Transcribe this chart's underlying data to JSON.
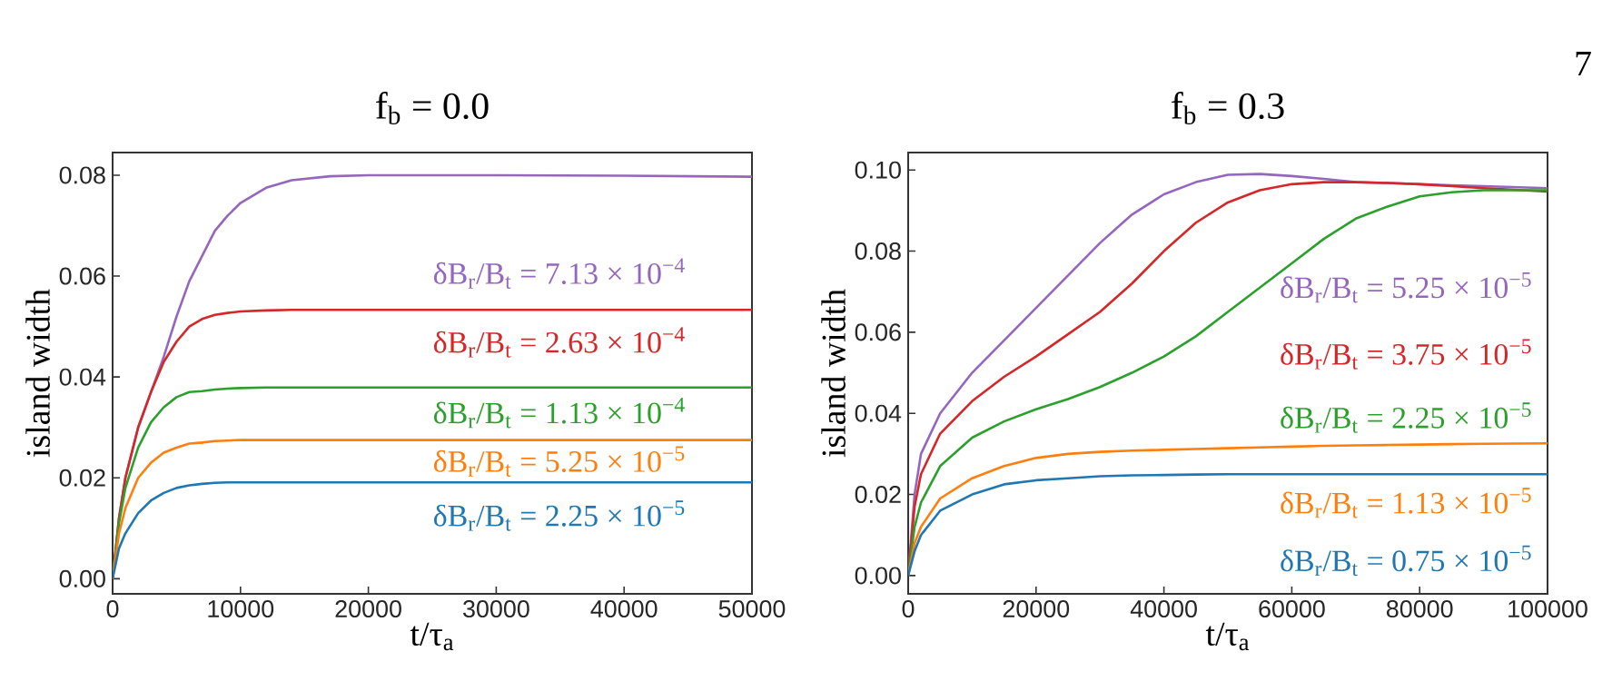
{
  "chart_data": [
    {
      "type": "line",
      "title": "f$_{b}$ = 0.0",
      "xlabel": "t/τ$_{a}$",
      "ylabel": "island width",
      "xlim": [
        0,
        50000
      ],
      "ylim": [
        -0.003,
        0.0845
      ],
      "xticks": [
        0,
        10000,
        20000,
        30000,
        40000,
        50000
      ],
      "yticks": [
        {
          "value": 0,
          "label": "0.00"
        },
        {
          "value": 0.02,
          "label": "0.02"
        },
        {
          "value": 0.04,
          "label": "0.04"
        },
        {
          "value": 0.06,
          "label": "0.06"
        },
        {
          "value": 0.08,
          "label": "0.08"
        }
      ],
      "x": [
        0,
        500,
        1000,
        2000,
        3000,
        4000,
        5000,
        6000,
        7000,
        8000,
        9000,
        10000,
        12000,
        14000,
        17000,
        20000,
        30000,
        40000,
        50000
      ],
      "series": [
        {
          "name": "δB$_{r}$/B$_{t}$ = 7.13 × 10$^{−4}$",
          "color": "#9467bd",
          "values": [
            0,
            0.012,
            0.02,
            0.03,
            0.037,
            0.044,
            0.052,
            0.059,
            0.064,
            0.069,
            0.072,
            0.0745,
            0.0775,
            0.079,
            0.0798,
            0.08,
            0.08,
            0.0799,
            0.0797
          ]
        },
        {
          "name": "δB$_{r}$/B$_{t}$ = 2.63 × 10$^{−4}$",
          "color": "#d62728",
          "values": [
            0,
            0.012,
            0.02,
            0.03,
            0.037,
            0.043,
            0.047,
            0.05,
            0.0515,
            0.0523,
            0.0527,
            0.053,
            0.0532,
            0.0533,
            0.0533,
            0.0533,
            0.0533,
            0.0533,
            0.0533
          ]
        },
        {
          "name": "δB$_{r}$/B$_{t}$ = 1.13 × 10$^{−4}$",
          "color": "#2ca02c",
          "values": [
            0,
            0.011,
            0.018,
            0.026,
            0.031,
            0.034,
            0.036,
            0.037,
            0.0372,
            0.0375,
            0.0377,
            0.0378,
            0.0379,
            0.0379,
            0.0379,
            0.0379,
            0.0379,
            0.0379,
            0.0379
          ]
        },
        {
          "name": "δB$_{r}$/B$_{t}$ = 5.25 × 10$^{−5}$",
          "color": "#ff7f0e",
          "values": [
            0,
            0.009,
            0.014,
            0.02,
            0.023,
            0.025,
            0.026,
            0.0268,
            0.027,
            0.0273,
            0.0274,
            0.0275,
            0.0275,
            0.0275,
            0.0275,
            0.0275,
            0.0275,
            0.0275,
            0.0275
          ]
        },
        {
          "name": "δB$_{r}$/B$_{t}$ = 2.25 × 10$^{−5}$",
          "color": "#1f77b4",
          "values": [
            0,
            0.006,
            0.009,
            0.013,
            0.0155,
            0.017,
            0.018,
            0.0185,
            0.0188,
            0.019,
            0.0191,
            0.0191,
            0.0191,
            0.0191,
            0.0191,
            0.0191,
            0.0191,
            0.0191,
            0.0191
          ]
        }
      ]
    },
    {
      "type": "line",
      "title": "f$_{b}$ = 0.3",
      "xlabel": "t/τ$_{a}$",
      "ylabel": "island width",
      "xlim": [
        0,
        100000
      ],
      "ylim": [
        -0.0045,
        0.1043
      ],
      "xticks": [
        0,
        20000,
        40000,
        60000,
        80000,
        100000
      ],
      "yticks": [
        {
          "value": 0,
          "label": "0.00"
        },
        {
          "value": 0.02,
          "label": "0.02"
        },
        {
          "value": 0.04,
          "label": "0.04"
        },
        {
          "value": 0.06,
          "label": "0.06"
        },
        {
          "value": 0.08,
          "label": "0.08"
        },
        {
          "value": 0.1,
          "label": "0.10"
        }
      ],
      "x": [
        0,
        1000,
        2000,
        5000,
        10000,
        15000,
        20000,
        25000,
        30000,
        35000,
        40000,
        45000,
        50000,
        55000,
        60000,
        65000,
        70000,
        75000,
        80000,
        85000,
        90000,
        100000
      ],
      "annotations": [
        "7"
      ],
      "series": [
        {
          "name": "δB$_{r}$/B$_{t}$ = 5.25 × 10$^{−5}$",
          "color": "#9467bd",
          "values": [
            0,
            0.02,
            0.03,
            0.04,
            0.05,
            0.058,
            0.066,
            0.074,
            0.082,
            0.089,
            0.094,
            0.097,
            0.0988,
            0.099,
            0.0985,
            0.0978,
            0.097,
            0.0968,
            0.0965,
            0.0962,
            0.096,
            0.0955
          ]
        },
        {
          "name": "δB$_{r}$/B$_{t}$ = 3.75 × 10$^{−5}$",
          "color": "#d62728",
          "values": [
            0,
            0.017,
            0.025,
            0.035,
            0.043,
            0.049,
            0.054,
            0.0595,
            0.065,
            0.072,
            0.08,
            0.087,
            0.092,
            0.095,
            0.0965,
            0.097,
            0.097,
            0.0968,
            0.0965,
            0.096,
            0.0955,
            0.0947
          ]
        },
        {
          "name": "δB$_{r}$/B$_{t}$ = 2.25 × 10$^{−5}$",
          "color": "#2ca02c",
          "values": [
            0,
            0.012,
            0.018,
            0.027,
            0.034,
            0.038,
            0.041,
            0.0435,
            0.0465,
            0.05,
            0.054,
            0.059,
            0.065,
            0.071,
            0.077,
            0.083,
            0.088,
            0.091,
            0.0935,
            0.0945,
            0.095,
            0.095
          ]
        },
        {
          "name": "δB$_{r}$/B$_{t}$ = 1.13 × 10$^{−5}$",
          "color": "#ff7f0e",
          "values": [
            0,
            0.008,
            0.012,
            0.019,
            0.024,
            0.027,
            0.029,
            0.03,
            0.0305,
            0.0308,
            0.031,
            0.0312,
            0.0314,
            0.0316,
            0.0318,
            0.032,
            0.0321,
            0.0322,
            0.0323,
            0.0324,
            0.0325,
            0.0326
          ]
        },
        {
          "name": "δB$_{r}$/B$_{t}$ = 0.75 × 10$^{−5}$",
          "color": "#1f77b4",
          "values": [
            0,
            0.006,
            0.01,
            0.016,
            0.02,
            0.0225,
            0.0235,
            0.024,
            0.0245,
            0.0247,
            0.0248,
            0.0249,
            0.025,
            0.025,
            0.025,
            0.025,
            0.025,
            0.025,
            0.025,
            0.025,
            0.025,
            0.025
          ]
        }
      ]
    }
  ]
}
